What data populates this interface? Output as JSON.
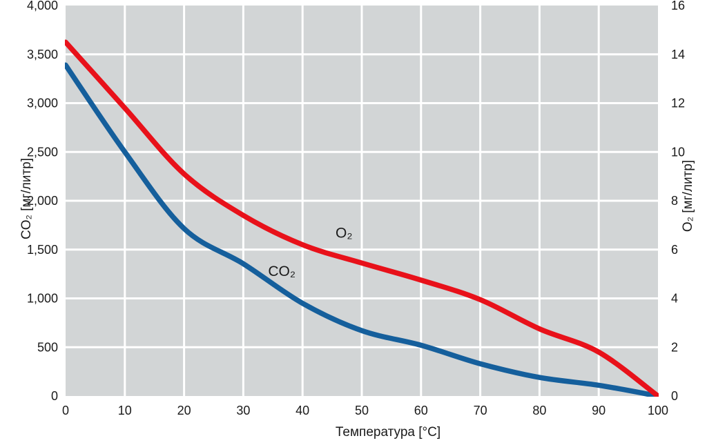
{
  "chart_data": {
    "type": "line",
    "title": "",
    "xlabel": "Температура [°C]",
    "ylabel_left": "CO₂ [мг/литр]",
    "ylabel_right": "O₂ [мг/литр]",
    "xlim": [
      0,
      100
    ],
    "ylim_left": [
      0,
      4000
    ],
    "ylim_right": [
      0,
      16
    ],
    "grid": true,
    "legend": "none",
    "x_ticks": [
      0,
      10,
      20,
      30,
      40,
      50,
      60,
      70,
      80,
      90,
      100
    ],
    "y_ticks_left": [
      "4,000",
      "3,500",
      "3,000",
      "2,500",
      "2,000",
      "1,500",
      "1,000",
      "500",
      "0"
    ],
    "y_ticks_right": [
      "16",
      "14",
      "12",
      "10",
      "8",
      "6",
      "4",
      "2",
      "0"
    ],
    "x": [
      0,
      10,
      20,
      30,
      40,
      50,
      60,
      70,
      80,
      90,
      100
    ],
    "series": [
      {
        "id": "o2-curve",
        "name": "O₂",
        "axis": "right",
        "color": "#e8111a",
        "values": [
          14.5,
          11.8,
          9.1,
          7.4,
          6.2,
          5.45,
          4.75,
          3.95,
          2.75,
          1.8,
          0
        ]
      },
      {
        "id": "co2-curve",
        "name": "CO₂",
        "axis": "left",
        "color": "#155f9c",
        "values": [
          3390,
          2500,
          1715,
          1355,
          950,
          670,
          520,
          330,
          190,
          110,
          0
        ]
      }
    ],
    "annotations": [
      {
        "id": "o2-curve-label",
        "text": "O₂",
        "x": 47,
        "y": 1670
      },
      {
        "id": "co2-curve-label",
        "text": "CO₂",
        "x": 36.5,
        "y": 1280
      }
    ],
    "colors": {
      "plot_bg": "#d2d5d6",
      "grid": "#ffffff",
      "text": "#1a1a1a"
    }
  }
}
